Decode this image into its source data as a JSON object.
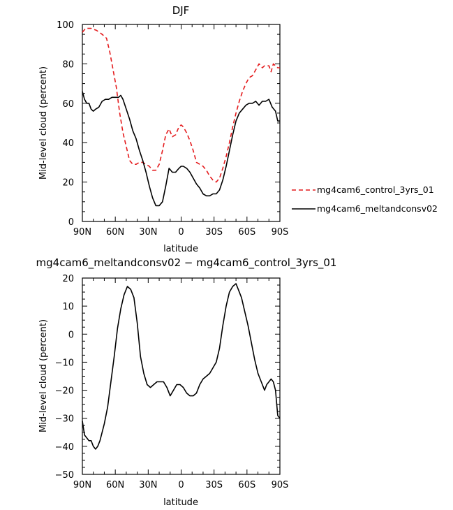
{
  "chart_data": [
    {
      "type": "line",
      "title": "DJF",
      "xlabel": "latitude",
      "ylabel": "Mid-level cloud (percent)",
      "xlim": [
        90,
        -90
      ],
      "ylim": [
        0,
        100
      ],
      "xticks": [
        90,
        60,
        30,
        0,
        -30,
        -60,
        -90
      ],
      "xticklabels": [
        "90N",
        "60N",
        "30N",
        "0",
        "30S",
        "60S",
        "90S"
      ],
      "yticks": [
        0,
        20,
        40,
        60,
        80,
        100
      ],
      "yticklabels": [
        "0",
        "20",
        "40",
        "60",
        "80",
        "100"
      ],
      "legend_position": "right",
      "series": [
        {
          "name": "mg4cam6_control_3yrs_01",
          "color": "#e41a1c",
          "style": "dashed",
          "x": [
            90,
            87,
            82,
            77,
            72,
            68,
            65,
            62,
            59,
            56,
            53,
            50,
            47,
            44,
            41,
            38,
            35,
            32,
            29,
            26,
            23,
            20,
            17,
            14,
            11,
            8,
            5,
            2,
            0,
            -2,
            -5,
            -8,
            -11,
            -14,
            -17,
            -20,
            -23,
            -26,
            -29,
            -32,
            -35,
            -38,
            -41,
            -44,
            -47,
            -50,
            -53,
            -56,
            -59,
            -62,
            -65,
            -68,
            -71,
            -74,
            -76,
            -78,
            -80,
            -82,
            -84,
            -86,
            -88,
            -90
          ],
          "y": [
            96,
            98,
            98,
            97,
            95,
            93,
            86,
            77,
            68,
            55,
            45,
            38,
            31,
            29,
            29,
            30,
            30,
            29,
            28,
            26,
            26,
            29,
            36,
            44,
            47,
            43,
            44,
            48,
            49,
            48,
            45,
            41,
            36,
            30,
            29,
            28,
            26,
            23,
            21,
            20,
            22,
            27,
            33,
            40,
            48,
            55,
            61,
            66,
            70,
            73,
            74,
            77,
            80,
            78,
            79,
            79,
            79,
            76,
            80,
            79,
            78,
            78
          ]
        },
        {
          "name": "mg4cam6_meltandconsv02",
          "color": "#000000",
          "style": "solid",
          "x": [
            90,
            88,
            86,
            84,
            82,
            80,
            78,
            75,
            72,
            69,
            66,
            63,
            60,
            57,
            55,
            53,
            50,
            47,
            44,
            41,
            38,
            35,
            32,
            29,
            26,
            23,
            20,
            17,
            14,
            11,
            8,
            5,
            2,
            0,
            -2,
            -5,
            -8,
            -11,
            -14,
            -17,
            -20,
            -23,
            -26,
            -29,
            -32,
            -35,
            -38,
            -41,
            -44,
            -47,
            -50,
            -53,
            -56,
            -59,
            -62,
            -65,
            -68,
            -71,
            -74,
            -77,
            -80,
            -83,
            -86,
            -88,
            -90
          ],
          "y": [
            66,
            62,
            60,
            60,
            57,
            56,
            57,
            58,
            61,
            62,
            62,
            63,
            63,
            63,
            64,
            62,
            57,
            52,
            46,
            42,
            36,
            31,
            25,
            18,
            12,
            8,
            8,
            10,
            18,
            27,
            25,
            25,
            27,
            28,
            28,
            27,
            25,
            22,
            19,
            17,
            14,
            13,
            13,
            14,
            14,
            16,
            21,
            28,
            36,
            44,
            51,
            55,
            57,
            59,
            60,
            60,
            61,
            59,
            61,
            61,
            62,
            58,
            56,
            51,
            51
          ]
        }
      ]
    },
    {
      "type": "line",
      "title": "mg4cam6_meltandconsv02 − mg4cam6_control_3yrs_01",
      "xlabel": "latitude",
      "ylabel": "Mid-level cloud (percent)",
      "xlim": [
        90,
        -90
      ],
      "ylim": [
        -50,
        20
      ],
      "xticks": [
        90,
        60,
        30,
        0,
        -30,
        -60,
        -90
      ],
      "xticklabels": [
        "90N",
        "60N",
        "30N",
        "0",
        "30S",
        "60S",
        "90S"
      ],
      "yticks": [
        -50,
        -40,
        -30,
        -20,
        -10,
        0,
        10,
        20
      ],
      "yticklabels": [
        "−50",
        "−40",
        "−30",
        "−20",
        "−10",
        "0",
        "10",
        "20"
      ],
      "series": [
        {
          "color": "#000000",
          "style": "solid",
          "x": [
            90,
            88,
            86,
            84,
            82,
            80,
            78,
            76,
            74,
            72,
            70,
            67,
            64,
            61,
            58,
            55,
            52,
            49,
            46,
            43,
            40,
            37,
            34,
            31,
            28,
            25,
            22,
            19,
            16,
            13,
            10,
            7,
            4,
            1,
            -2,
            -5,
            -8,
            -11,
            -14,
            -17,
            -20,
            -23,
            -26,
            -29,
            -32,
            -35,
            -38,
            -41,
            -44,
            -47,
            -50,
            -52,
            -55,
            -58,
            -61,
            -64,
            -67,
            -70,
            -73,
            -76,
            -78,
            -80,
            -82,
            -84,
            -86,
            -88,
            -90
          ],
          "y": [
            -31,
            -36,
            -37,
            -38,
            -38,
            -40,
            -41,
            -40,
            -38,
            -35,
            -32,
            -26,
            -17,
            -8,
            2,
            9,
            14,
            17,
            16,
            13,
            4,
            -8,
            -14,
            -18,
            -19,
            -18,
            -17,
            -17,
            -17,
            -19,
            -22,
            -20,
            -18,
            -18,
            -19,
            -21,
            -22,
            -22,
            -21,
            -18,
            -16,
            -15,
            -14,
            -12,
            -10,
            -5,
            3,
            10,
            15,
            17,
            18,
            16,
            13,
            8,
            3,
            -3,
            -9,
            -14,
            -17,
            -20,
            -18,
            -17,
            -16,
            -17,
            -20,
            -29,
            -30
          ]
        }
      ]
    }
  ]
}
